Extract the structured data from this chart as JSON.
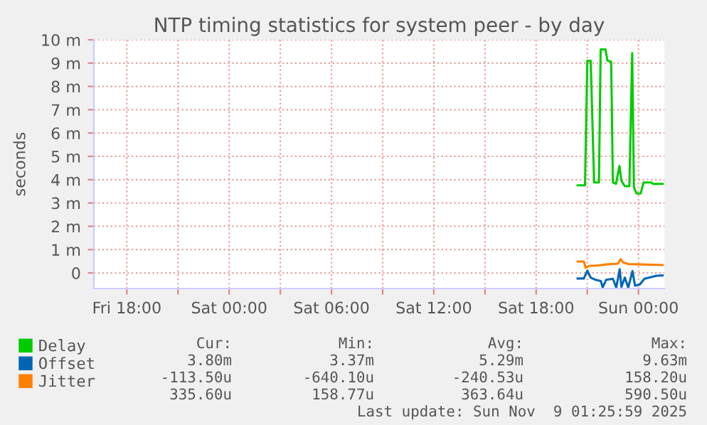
{
  "chart_data": {
    "type": "line",
    "title": "NTP timing statistics for system peer - by day",
    "ylabel": "seconds",
    "xlim": [
      "2025-11-07T16:04",
      "2025-11-09T01:31"
    ],
    "ylim": [
      -0.67,
      10
    ],
    "xticks": [
      {
        "value": "2025-11-07T18:00",
        "label": "Fri 18:00"
      },
      {
        "value": "2025-11-07T21:00",
        "label": null
      },
      {
        "value": "2025-11-08T00:00",
        "label": "Sat 00:00"
      },
      {
        "value": "2025-11-08T03:00",
        "label": null
      },
      {
        "value": "2025-11-08T06:00",
        "label": "Sat 06:00"
      },
      {
        "value": "2025-11-08T09:00",
        "label": null
      },
      {
        "value": "2025-11-08T12:00",
        "label": "Sat 12:00"
      },
      {
        "value": "2025-11-08T15:00",
        "label": null
      },
      {
        "value": "2025-11-08T18:00",
        "label": "Sat 18:00"
      },
      {
        "value": "2025-11-08T21:00",
        "label": null
      },
      {
        "value": "2025-11-09T00:00",
        "label": "Sun 00:00"
      }
    ],
    "yticks": [
      0,
      {
        "value": 1,
        "label": "1 m"
      },
      {
        "value": 2,
        "label": "2 m"
      },
      {
        "value": 3,
        "label": "3 m"
      },
      {
        "value": 4,
        "label": "4 m"
      },
      {
        "value": 5,
        "label": "5 m"
      },
      {
        "value": 6,
        "label": "6 m"
      },
      {
        "value": 7,
        "label": "7 m"
      },
      {
        "value": 8,
        "label": "8 m"
      },
      {
        "value": 9,
        "label": "9 m"
      },
      {
        "value": 10,
        "label": "10 m"
      }
    ],
    "grid": true,
    "legend": "bottom left",
    "series": [
      {
        "name": "Delay",
        "color": "#00cc00",
        "x": [
          "2025-11-08T20:26",
          "2025-11-08T20:52",
          "2025-11-08T21:00",
          "2025-11-08T21:12",
          "2025-11-08T21:24",
          "2025-11-08T21:41",
          "2025-11-08T21:47",
          "2025-11-08T22:04",
          "2025-11-08T22:11",
          "2025-11-08T22:24",
          "2025-11-08T22:30",
          "2025-11-08T22:41",
          "2025-11-08T22:53",
          "2025-11-08T23:00",
          "2025-11-08T23:12",
          "2025-11-08T23:28",
          "2025-11-08T23:38",
          "2025-11-08T23:44",
          "2025-11-08T23:53",
          "2025-11-09T00:08",
          "2025-11-09T00:18",
          "2025-11-09T00:45",
          "2025-11-09T00:52",
          "2025-11-09T01:25"
        ],
        "values": [
          3.76,
          3.76,
          9.1,
          9.1,
          3.88,
          3.88,
          9.59,
          9.59,
          9.1,
          9.06,
          3.88,
          3.82,
          4.59,
          3.95,
          3.72,
          3.72,
          9.43,
          3.68,
          3.41,
          3.41,
          3.88,
          3.88,
          3.82,
          3.82
        ]
      },
      {
        "name": "Offset",
        "color": "#0066b3",
        "x": [
          "2025-11-08T20:26",
          "2025-11-08T20:48",
          "2025-11-08T21:00",
          "2025-11-08T21:12",
          "2025-11-08T21:30",
          "2025-11-08T21:48",
          "2025-11-08T21:54",
          "2025-11-08T22:06",
          "2025-11-08T22:30",
          "2025-11-08T22:42",
          "2025-11-08T22:54",
          "2025-11-08T23:00",
          "2025-11-08T23:12",
          "2025-11-08T23:24",
          "2025-11-08T23:39",
          "2025-11-08T23:48",
          "2025-11-09T00:04",
          "2025-11-09T00:21",
          "2025-11-09T01:03",
          "2025-11-09T01:25"
        ],
        "values": [
          -0.24,
          -0.24,
          0.1,
          -0.2,
          -0.3,
          -0.35,
          -0.63,
          -0.3,
          -0.25,
          -0.63,
          0.16,
          -0.6,
          -0.2,
          -0.63,
          0.08,
          -0.55,
          -0.5,
          -0.25,
          -0.12,
          -0.11
        ]
      },
      {
        "name": "Jitter",
        "color": "#ff8000",
        "x": [
          "2025-11-08T20:26",
          "2025-11-08T20:48",
          "2025-11-08T20:54",
          "2025-11-08T21:06",
          "2025-11-08T21:36",
          "2025-11-08T22:12",
          "2025-11-08T22:48",
          "2025-11-08T22:57",
          "2025-11-08T23:06",
          "2025-11-08T23:24",
          "2025-11-08T23:54",
          "2025-11-09T01:25"
        ],
        "values": [
          0.49,
          0.49,
          0.22,
          0.3,
          0.32,
          0.37,
          0.4,
          0.59,
          0.45,
          0.38,
          0.37,
          0.34
        ]
      }
    ],
    "annotations": [
      "Cur:",
      "Min:",
      "Avg:",
      "Max:",
      "3.80m",
      "3.37m",
      "5.29m",
      "9.63m",
      "-113.50u",
      "-640.10u",
      "-240.53u",
      "158.20u",
      "335.60u",
      "158.77u",
      "363.64u",
      "590.50u",
      "Last update: Sun Nov  9 01:25:59 2025"
    ]
  }
}
